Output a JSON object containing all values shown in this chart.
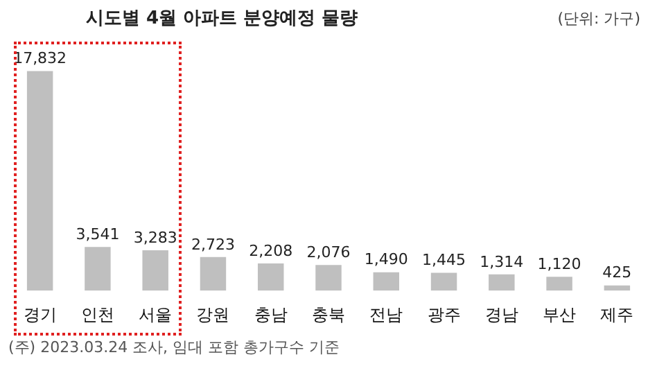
{
  "chart_data": {
    "type": "bar",
    "title": "시도별 4월 아파트 분양예정 물량",
    "categories": [
      "경기",
      "인천",
      "서울",
      "강원",
      "충남",
      "충북",
      "전남",
      "광주",
      "경남",
      "부산",
      "제주"
    ],
    "values": [
      17832,
      3541,
      3283,
      2723,
      2208,
      2076,
      1490,
      1445,
      1314,
      1120,
      425
    ],
    "value_labels": [
      "17,832",
      "3,541",
      "3,283",
      "2,723",
      "2,208",
      "2,076",
      "1,490",
      "1,445",
      "1,314",
      "1,120",
      "425"
    ],
    "color": "#bfbfbf",
    "grid": false,
    "legend": false,
    "tick_labels": "x",
    "annotations": [
      "(단위: 가구)",
      "(주) 2023.03.24 조사, 임대 포함 총가구수 기준"
    ]
  }
}
